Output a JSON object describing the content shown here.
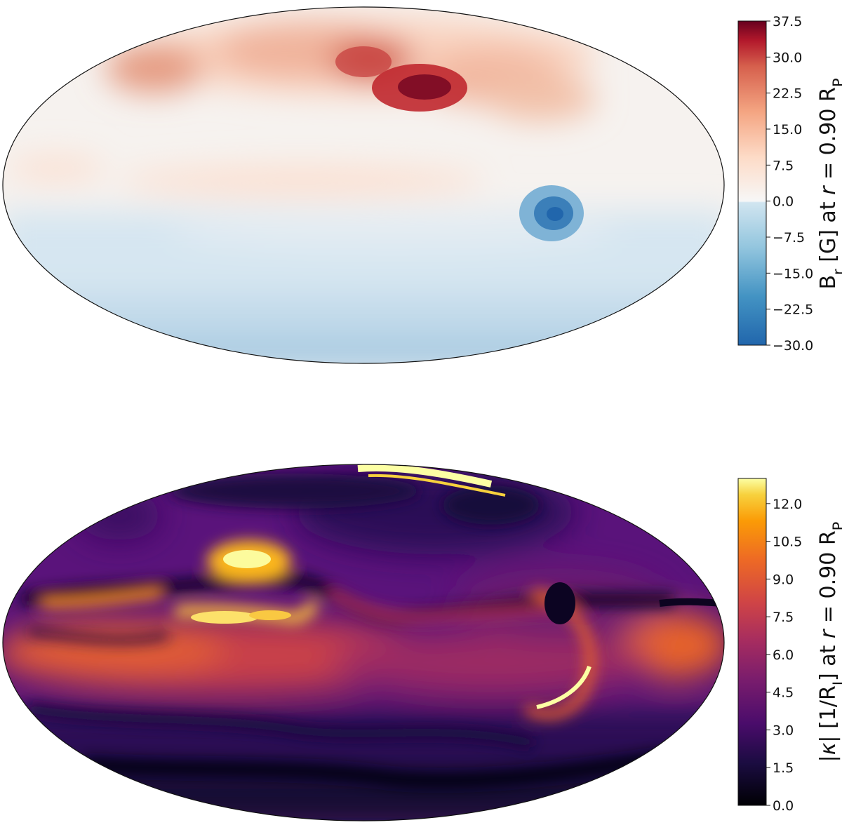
{
  "chart_data": [
    {
      "type": "heatmap",
      "projection": "mollweide",
      "colormap": "diverging red-blue",
      "colorbar_label": "B_r [G] at r = 0.90 R_P",
      "colorbar_ticks": [
        "37.5",
        "30.0",
        "22.5",
        "15.0",
        "7.5",
        "0.0",
        "−7.5",
        "−15.0",
        "−22.5",
        "−30.0"
      ],
      "vmin": -30.0,
      "vmax": 37.5,
      "features": [
        {
          "name": "strong positive patch",
          "lon_deg": 40,
          "lat_deg": 45,
          "value": 37.5
        },
        {
          "name": "positive band",
          "lon_deg": -5,
          "lat_deg": 55,
          "value": 27
        },
        {
          "name": "positive patch",
          "lon_deg": -120,
          "lat_deg": 42,
          "value": 20
        },
        {
          "name": "negative spot",
          "lon_deg": 115,
          "lat_deg": 2,
          "value": -30.0
        },
        {
          "name": "weak negative belt",
          "lon_deg": 0,
          "lat_deg": -40,
          "value": -10
        }
      ],
      "colors": {
        "max": "#67001f",
        "zero": "#f7f7f7",
        "min": "#2166ac"
      }
    },
    {
      "type": "heatmap",
      "projection": "mollweide",
      "colormap": "inferno",
      "colorbar_label": "|κ| [1/R_J] at r = 0.90 R_P",
      "colorbar_ticks": [
        "12.0",
        "10.5",
        "9.0",
        "7.5",
        "6.0",
        "4.5",
        "3.0",
        "1.5",
        "0.0"
      ],
      "vmin": 0.0,
      "vmax": 13.0,
      "features": [
        {
          "name": "bright patch",
          "lon_deg": -80,
          "lat_deg": 40,
          "value": 13.0
        },
        {
          "name": "bright band",
          "lon_deg": -60,
          "lat_deg": 5,
          "value": 12.5
        },
        {
          "name": "bright polar arc",
          "lon_deg": 10,
          "lat_deg": 85,
          "value": 13.0
        },
        {
          "name": "equatorial orange belt",
          "lon_deg": 0,
          "lat_deg": -10,
          "value": 7.5
        },
        {
          "name": "bright crescent",
          "lon_deg": 110,
          "lat_deg": -35,
          "value": 12.0
        },
        {
          "name": "dark spot",
          "lon_deg": 115,
          "lat_deg": -18,
          "value": 0.5
        }
      ],
      "colors": {
        "max": "#fcffa4",
        "mid": "#dd513a",
        "min": "#000004"
      }
    }
  ]
}
